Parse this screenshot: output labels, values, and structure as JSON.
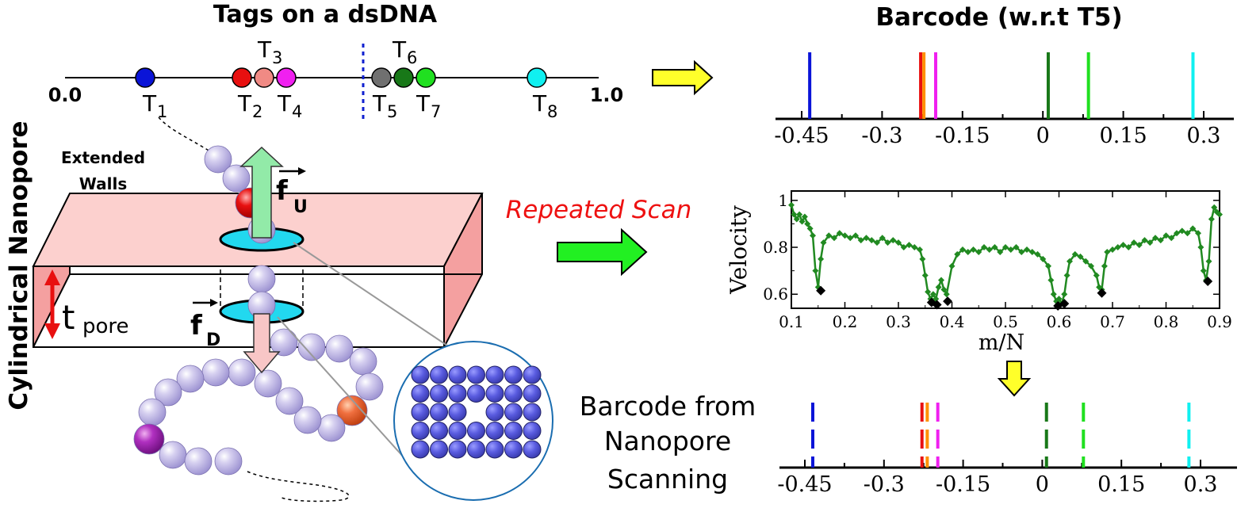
{
  "left_panel": {
    "title": "Tags on a dsDNA",
    "axis_start": "0.0",
    "axis_end": "1.0",
    "tags": [
      {
        "label": "T",
        "sub": "1",
        "color": "#0a14d8"
      },
      {
        "label": "T",
        "sub": "2",
        "color": "#e81010"
      },
      {
        "label": "T",
        "sub": "3",
        "color": "#f08a84"
      },
      {
        "label": "T",
        "sub": "4",
        "color": "#f020f0"
      },
      {
        "label": "T",
        "sub": "5",
        "color": "#707070"
      },
      {
        "label": "T",
        "sub": "6",
        "color": "#187818"
      },
      {
        "label": "T",
        "sub": "7",
        "color": "#20e020"
      },
      {
        "label": "T",
        "sub": "8",
        "color": "#10f0f0"
      }
    ],
    "side_label": "Cylindrical Nanopore",
    "walls_label_1": "Extended",
    "walls_label_2": "Walls",
    "force_up": "f",
    "force_up_sub": "U",
    "force_down": "f",
    "force_down_sub": "D",
    "thickness": "t",
    "thickness_sub": "pore"
  },
  "middle": {
    "repeated_scan": "Repeated Scan"
  },
  "barcode_top": {
    "title": "Barcode (w.r.t T5)",
    "ticks": [
      "-0.45",
      "-0.3",
      "-0.15",
      "0",
      "0.15",
      "0.3"
    ],
    "lines": [
      {
        "x": -0.435,
        "color": "#0a14d8"
      },
      {
        "x": -0.228,
        "color": "#e81010"
      },
      {
        "x": -0.222,
        "color": "#ff9000"
      },
      {
        "x": -0.2,
        "color": "#f020f0"
      },
      {
        "x": 0.01,
        "color": "#187818"
      },
      {
        "x": 0.085,
        "color": "#20e020"
      },
      {
        "x": 0.28,
        "color": "#10f0f0"
      }
    ]
  },
  "chart_data": {
    "type": "line",
    "xlabel": "m/N",
    "ylabel": "Velocity",
    "xlim": [
      0.1,
      0.9
    ],
    "ylim": [
      0.54,
      1.04
    ],
    "x_ticks": [
      "0.1",
      "0.2",
      "0.3",
      "0.4",
      "0.5",
      "0.6",
      "0.7",
      "0.8",
      "0.9"
    ],
    "y_ticks": [
      "0.6",
      "0.8",
      "1"
    ],
    "series": [
      {
        "color": "#218a21",
        "x": [
          0.1,
          0.105,
          0.11,
          0.115,
          0.12,
          0.125,
          0.13,
          0.135,
          0.14,
          0.145,
          0.15,
          0.155,
          0.16,
          0.17,
          0.18,
          0.19,
          0.2,
          0.21,
          0.22,
          0.23,
          0.24,
          0.25,
          0.26,
          0.27,
          0.28,
          0.29,
          0.3,
          0.31,
          0.32,
          0.33,
          0.34,
          0.345,
          0.35,
          0.355,
          0.36,
          0.365,
          0.37,
          0.375,
          0.38,
          0.385,
          0.39,
          0.4,
          0.41,
          0.42,
          0.43,
          0.44,
          0.45,
          0.46,
          0.47,
          0.48,
          0.49,
          0.5,
          0.51,
          0.52,
          0.53,
          0.54,
          0.55,
          0.56,
          0.57,
          0.58,
          0.585,
          0.59,
          0.595,
          0.6,
          0.605,
          0.61,
          0.615,
          0.62,
          0.63,
          0.64,
          0.65,
          0.66,
          0.67,
          0.675,
          0.68,
          0.685,
          0.69,
          0.7,
          0.71,
          0.72,
          0.73,
          0.74,
          0.75,
          0.76,
          0.77,
          0.78,
          0.79,
          0.8,
          0.81,
          0.82,
          0.83,
          0.84,
          0.85,
          0.86,
          0.865,
          0.87,
          0.875,
          0.88,
          0.885,
          0.89,
          0.895,
          0.9
        ],
        "y": [
          0.98,
          0.94,
          0.92,
          0.94,
          0.91,
          0.93,
          0.9,
          0.88,
          0.85,
          0.7,
          0.63,
          0.75,
          0.82,
          0.85,
          0.84,
          0.86,
          0.85,
          0.84,
          0.85,
          0.83,
          0.84,
          0.83,
          0.82,
          0.84,
          0.82,
          0.83,
          0.82,
          0.8,
          0.81,
          0.8,
          0.79,
          0.75,
          0.68,
          0.61,
          0.58,
          0.6,
          0.58,
          0.63,
          0.66,
          0.62,
          0.6,
          0.72,
          0.77,
          0.79,
          0.78,
          0.79,
          0.78,
          0.8,
          0.79,
          0.8,
          0.78,
          0.8,
          0.79,
          0.8,
          0.78,
          0.79,
          0.78,
          0.77,
          0.75,
          0.72,
          0.66,
          0.6,
          0.57,
          0.58,
          0.56,
          0.6,
          0.68,
          0.74,
          0.77,
          0.76,
          0.74,
          0.72,
          0.68,
          0.63,
          0.62,
          0.72,
          0.78,
          0.79,
          0.8,
          0.81,
          0.8,
          0.82,
          0.81,
          0.83,
          0.82,
          0.84,
          0.83,
          0.85,
          0.84,
          0.86,
          0.87,
          0.86,
          0.88,
          0.86,
          0.8,
          0.7,
          0.66,
          0.74,
          0.92,
          0.97,
          0.95,
          0.94
        ]
      }
    ],
    "minima": [
      {
        "x": 0.155,
        "y": 0.615
      },
      {
        "x": 0.362,
        "y": 0.565
      },
      {
        "x": 0.372,
        "y": 0.555
      },
      {
        "x": 0.392,
        "y": 0.57
      },
      {
        "x": 0.598,
        "y": 0.55
      },
      {
        "x": 0.61,
        "y": 0.56
      },
      {
        "x": 0.68,
        "y": 0.605
      },
      {
        "x": 0.878,
        "y": 0.655
      }
    ]
  },
  "barcode_bottom": {
    "label_line1": "Barcode from",
    "label_line2": "Nanopore",
    "label_line3": "Scanning",
    "ticks": [
      "-0.45",
      "-0.3",
      "-0.15",
      "0",
      "0.15",
      "0.3"
    ],
    "lines": [
      {
        "x": -0.435,
        "color": "#0a14d8"
      },
      {
        "x": -0.228,
        "color": "#e81010"
      },
      {
        "x": -0.218,
        "color": "#ff9000"
      },
      {
        "x": -0.198,
        "color": "#f020f0"
      },
      {
        "x": 0.008,
        "color": "#187818"
      },
      {
        "x": 0.078,
        "color": "#20e020"
      },
      {
        "x": 0.278,
        "color": "#10f0f0"
      }
    ]
  }
}
